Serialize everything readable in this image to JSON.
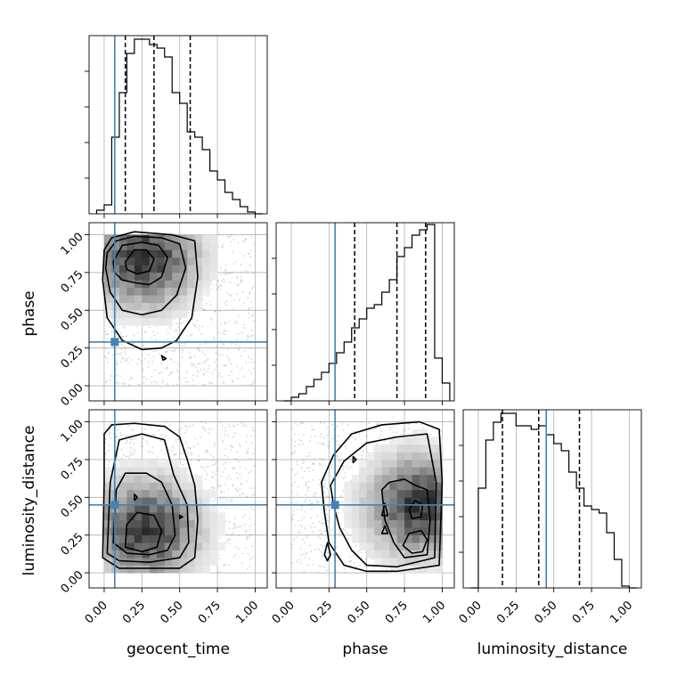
{
  "chart_data": {
    "type": "corner",
    "parameters": [
      "geocent_time",
      "phase",
      "luminosity_distance"
    ],
    "axis_range": [
      -0.1,
      1.08
    ],
    "tick_values": [
      0.0,
      0.25,
      0.5,
      0.75,
      1.0
    ],
    "tick_labels": [
      "0.00",
      "0.25",
      "0.50",
      "0.75",
      "1.00"
    ],
    "grid": true,
    "truths": {
      "geocent_time": 0.07,
      "phase": 0.29,
      "luminosity_distance": 0.45
    },
    "truth_color": "#4682b4",
    "histograms": {
      "geocent_time": {
        "bin_edges": [
          -0.05,
          0.0,
          0.05,
          0.1,
          0.15,
          0.2,
          0.25,
          0.3,
          0.35,
          0.4,
          0.45,
          0.5,
          0.55,
          0.6,
          0.65,
          0.7,
          0.75,
          0.8,
          0.85,
          0.9,
          0.95,
          1.0,
          1.05
        ],
        "counts": [
          0.02,
          0.05,
          0.43,
          0.68,
          0.9,
          0.98,
          0.98,
          0.95,
          0.93,
          0.88,
          0.68,
          0.62,
          0.46,
          0.43,
          0.36,
          0.24,
          0.19,
          0.12,
          0.08,
          0.04,
          0.01,
          0.0
        ],
        "quantiles": [
          0.14,
          0.33,
          0.57
        ]
      },
      "phase": {
        "bin_edges": [
          -0.05,
          0.0,
          0.05,
          0.1,
          0.15,
          0.2,
          0.25,
          0.3,
          0.35,
          0.4,
          0.45,
          0.5,
          0.55,
          0.6,
          0.65,
          0.7,
          0.75,
          0.8,
          0.85,
          0.9,
          0.95,
          1.0,
          1.05
        ],
        "counts": [
          0.0,
          0.02,
          0.04,
          0.08,
          0.12,
          0.16,
          0.21,
          0.27,
          0.33,
          0.41,
          0.46,
          0.52,
          0.54,
          0.61,
          0.68,
          0.81,
          0.86,
          0.93,
          0.96,
          0.99,
          0.24,
          0.1
        ],
        "quantiles": [
          0.42,
          0.7,
          0.89
        ]
      },
      "luminosity_distance": {
        "bin_edges": [
          -0.05,
          0.0,
          0.05,
          0.1,
          0.15,
          0.2,
          0.25,
          0.3,
          0.35,
          0.4,
          0.45,
          0.5,
          0.55,
          0.6,
          0.65,
          0.7,
          0.75,
          0.8,
          0.85,
          0.9,
          0.95,
          1.0,
          1.05
        ],
        "counts": [
          0.0,
          0.56,
          0.83,
          0.93,
          0.98,
          0.98,
          0.91,
          0.91,
          0.89,
          0.91,
          0.86,
          0.81,
          0.77,
          0.65,
          0.56,
          0.46,
          0.44,
          0.42,
          0.31,
          0.16,
          0.01,
          0.0
        ],
        "quantiles": [
          0.16,
          0.4,
          0.67
        ]
      }
    },
    "joint_panels": [
      {
        "x": "geocent_time",
        "y": "phase",
        "density_peak": [
          0.24,
          0.83
        ],
        "scatter_x_range": [
          0.0,
          1.0
        ],
        "scatter_y_range": [
          0.0,
          1.0
        ]
      },
      {
        "x": "geocent_time",
        "y": "luminosity_distance",
        "density_peak": [
          0.25,
          0.26
        ],
        "scatter_x_range": [
          0.0,
          1.0
        ],
        "scatter_y_range": [
          0.0,
          1.0
        ]
      },
      {
        "x": "phase",
        "y": "luminosity_distance",
        "density_peak": [
          0.83,
          0.42
        ],
        "scatter_x_range": [
          0.0,
          1.0
        ],
        "scatter_y_range": [
          0.0,
          1.0
        ]
      }
    ],
    "contours": {
      "geocent_time_phase": [
        [
          [
            0.0,
            0.9
          ],
          [
            0.05,
            0.98
          ],
          [
            0.2,
            1.02
          ],
          [
            0.45,
            1.0
          ],
          [
            0.6,
            0.96
          ],
          [
            0.62,
            0.72
          ],
          [
            0.58,
            0.45
          ],
          [
            0.48,
            0.3
          ],
          [
            0.38,
            0.25
          ],
          [
            0.25,
            0.24
          ],
          [
            0.12,
            0.3
          ],
          [
            0.02,
            0.45
          ],
          [
            -0.01,
            0.7
          ]
        ],
        [
          [
            0.02,
            0.88
          ],
          [
            0.08,
            0.96
          ],
          [
            0.2,
            0.99
          ],
          [
            0.38,
            0.98
          ],
          [
            0.5,
            0.94
          ],
          [
            0.54,
            0.78
          ],
          [
            0.48,
            0.6
          ],
          [
            0.38,
            0.5
          ],
          [
            0.25,
            0.47
          ],
          [
            0.12,
            0.5
          ],
          [
            0.04,
            0.62
          ],
          [
            0.01,
            0.78
          ]
        ],
        [
          [
            0.06,
            0.82
          ],
          [
            0.12,
            0.93
          ],
          [
            0.25,
            0.95
          ],
          [
            0.36,
            0.93
          ],
          [
            0.42,
            0.85
          ],
          [
            0.38,
            0.72
          ],
          [
            0.3,
            0.67
          ],
          [
            0.22,
            0.68
          ],
          [
            0.12,
            0.7
          ],
          [
            0.07,
            0.75
          ]
        ],
        [
          [
            0.14,
            0.82
          ],
          [
            0.2,
            0.9
          ],
          [
            0.28,
            0.9
          ],
          [
            0.33,
            0.84
          ],
          [
            0.3,
            0.76
          ],
          [
            0.22,
            0.74
          ],
          [
            0.15,
            0.77
          ]
        ],
        [
          [
            0.38,
            0.2
          ],
          [
            0.41,
            0.18
          ],
          [
            0.39,
            0.17
          ]
        ]
      ],
      "geocent_time_luminosity_distance": [
        [
          [
            -0.01,
            0.1
          ],
          [
            0.0,
            0.6
          ],
          [
            0.0,
            0.92
          ],
          [
            0.05,
            0.98
          ],
          [
            0.2,
            0.99
          ],
          [
            0.4,
            0.97
          ],
          [
            0.5,
            0.9
          ],
          [
            0.55,
            0.75
          ],
          [
            0.6,
            0.58
          ],
          [
            0.62,
            0.35
          ],
          [
            0.6,
            0.1
          ],
          [
            0.5,
            0.03
          ],
          [
            0.3,
            0.03
          ],
          [
            0.1,
            0.03
          ]
        ],
        [
          [
            0.02,
            0.13
          ],
          [
            0.04,
            0.6
          ],
          [
            0.1,
            0.88
          ],
          [
            0.25,
            0.92
          ],
          [
            0.4,
            0.88
          ],
          [
            0.46,
            0.65
          ],
          [
            0.55,
            0.45
          ],
          [
            0.56,
            0.2
          ],
          [
            0.5,
            0.1
          ],
          [
            0.3,
            0.07
          ],
          [
            0.1,
            0.08
          ]
        ],
        [
          [
            0.06,
            0.2
          ],
          [
            0.08,
            0.55
          ],
          [
            0.14,
            0.66
          ],
          [
            0.28,
            0.66
          ],
          [
            0.38,
            0.6
          ],
          [
            0.45,
            0.45
          ],
          [
            0.47,
            0.25
          ],
          [
            0.42,
            0.15
          ],
          [
            0.3,
            0.12
          ],
          [
            0.15,
            0.13
          ]
        ],
        [
          [
            0.14,
            0.17
          ],
          [
            0.15,
            0.32
          ],
          [
            0.22,
            0.4
          ],
          [
            0.33,
            0.38
          ],
          [
            0.38,
            0.28
          ],
          [
            0.35,
            0.17
          ],
          [
            0.25,
            0.14
          ]
        ],
        [
          [
            0.2,
            0.48
          ],
          [
            0.22,
            0.5
          ],
          [
            0.2,
            0.52
          ]
        ],
        [
          [
            0.5,
            0.36
          ],
          [
            0.52,
            0.37
          ],
          [
            0.5,
            0.38
          ]
        ]
      ],
      "phase_luminosity_distance": [
        [
          [
            0.2,
            0.6
          ],
          [
            0.28,
            0.78
          ],
          [
            0.4,
            0.92
          ],
          [
            0.6,
            0.98
          ],
          [
            0.85,
            1.0
          ],
          [
            0.98,
            0.95
          ],
          [
            1.0,
            0.6
          ],
          [
            0.98,
            0.05
          ],
          [
            0.7,
            0.01
          ],
          [
            0.5,
            0.01
          ],
          [
            0.35,
            0.05
          ],
          [
            0.25,
            0.2
          ],
          [
            0.22,
            0.4
          ]
        ],
        [
          [
            0.26,
            0.58
          ],
          [
            0.35,
            0.74
          ],
          [
            0.5,
            0.86
          ],
          [
            0.7,
            0.9
          ],
          [
            0.9,
            0.92
          ],
          [
            0.96,
            0.6
          ],
          [
            0.95,
            0.1
          ],
          [
            0.7,
            0.04
          ],
          [
            0.5,
            0.05
          ],
          [
            0.4,
            0.15
          ],
          [
            0.32,
            0.3
          ],
          [
            0.28,
            0.45
          ]
        ],
        [
          [
            0.6,
            0.55
          ],
          [
            0.65,
            0.6
          ],
          [
            0.75,
            0.62
          ],
          [
            0.82,
            0.58
          ],
          [
            0.9,
            0.55
          ],
          [
            0.92,
            0.35
          ],
          [
            0.9,
            0.12
          ],
          [
            0.75,
            0.1
          ],
          [
            0.68,
            0.2
          ],
          [
            0.62,
            0.35
          ]
        ],
        [
          [
            0.78,
            0.42
          ],
          [
            0.82,
            0.48
          ],
          [
            0.87,
            0.45
          ],
          [
            0.86,
            0.37
          ],
          [
            0.8,
            0.36
          ]
        ],
        [
          [
            0.74,
            0.18
          ],
          [
            0.78,
            0.26
          ],
          [
            0.86,
            0.28
          ],
          [
            0.9,
            0.22
          ],
          [
            0.87,
            0.14
          ],
          [
            0.8,
            0.13
          ]
        ],
        [
          [
            0.6,
            0.38
          ],
          [
            0.62,
            0.46
          ],
          [
            0.64,
            0.38
          ]
        ],
        [
          [
            0.6,
            0.26
          ],
          [
            0.62,
            0.31
          ],
          [
            0.64,
            0.26
          ]
        ],
        [
          [
            0.22,
            0.12
          ],
          [
            0.24,
            0.2
          ],
          [
            0.26,
            0.12
          ],
          [
            0.24,
            0.08
          ]
        ],
        [
          [
            0.41,
            0.73
          ],
          [
            0.43,
            0.75
          ],
          [
            0.41,
            0.77
          ]
        ]
      ]
    }
  }
}
